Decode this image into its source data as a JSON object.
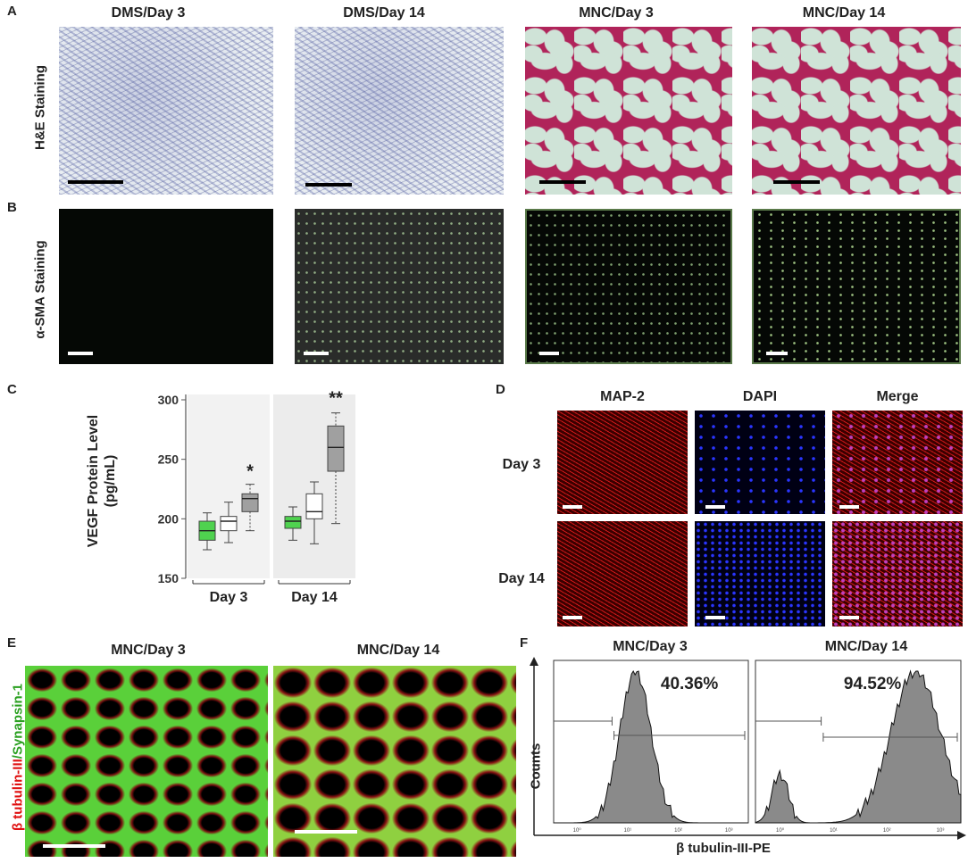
{
  "panels": {
    "A": {
      "letter": "A",
      "titles": [
        "DMS/Day 3",
        "DMS/Day 14",
        "MNC/Day 3",
        "MNC/Day 14"
      ],
      "row_label": "H&E Staining"
    },
    "B": {
      "letter": "B",
      "row_label": "α-SMA Staining"
    },
    "C": {
      "letter": "C"
    },
    "D": {
      "letter": "D",
      "col_titles": [
        "MAP-2",
        "DAPI",
        "Merge"
      ],
      "row_labels": [
        "Day 3",
        "Day 14"
      ]
    },
    "E": {
      "letter": "E",
      "titles": [
        "MNC/Day 3",
        "MNC/Day 14"
      ],
      "ylabel_red": "β tubulin-III",
      "ylabel_green": "/Synapsin-1"
    },
    "F": {
      "letter": "F",
      "titles": [
        "MNC/Day 3",
        "MNC/Day 14"
      ],
      "pct": [
        "40.36%",
        "94.52%"
      ],
      "ylabel": "Counts",
      "xlabel": "β tubulin-III-PE",
      "tick_labels": [
        "10⁰",
        "10¹",
        "10²",
        "10³"
      ]
    }
  },
  "chart_data": {
    "type": "box",
    "ylabel": "VEGF Protein Level\n(pg/mL)",
    "ylabel_line1": "VEGF Protein Level",
    "ylabel_line2": "(pg/mL)",
    "ylim": [
      150,
      300
    ],
    "yticks": [
      "300",
      "250",
      "200",
      "150"
    ],
    "categories": [
      "Day 3",
      "Day 14"
    ],
    "groups": [
      {
        "category": "Day 3",
        "boxes": [
          {
            "color": "#4fd24f",
            "min": 174,
            "q1": 182,
            "median": 190,
            "q3": 198,
            "max": 205
          },
          {
            "color": "#ffffff",
            "min": 180,
            "q1": 190,
            "median": 198,
            "q3": 202,
            "max": 214
          },
          {
            "color": "#a0a0a0",
            "min": 190,
            "q1": 206,
            "median": 217,
            "q3": 221,
            "max": 229
          }
        ],
        "annotation": "*"
      },
      {
        "category": "Day 14",
        "boxes": [
          {
            "color": "#4fd24f",
            "min": 182,
            "q1": 192,
            "median": 198,
            "q3": 202,
            "max": 210
          },
          {
            "color": "#ffffff",
            "min": 179,
            "q1": 200,
            "median": 206,
            "q3": 221,
            "max": 231
          },
          {
            "color": "#a0a0a0",
            "min": 196,
            "q1": 240,
            "median": 260,
            "q3": 278,
            "max": 289
          }
        ],
        "annotation": "**"
      }
    ]
  }
}
